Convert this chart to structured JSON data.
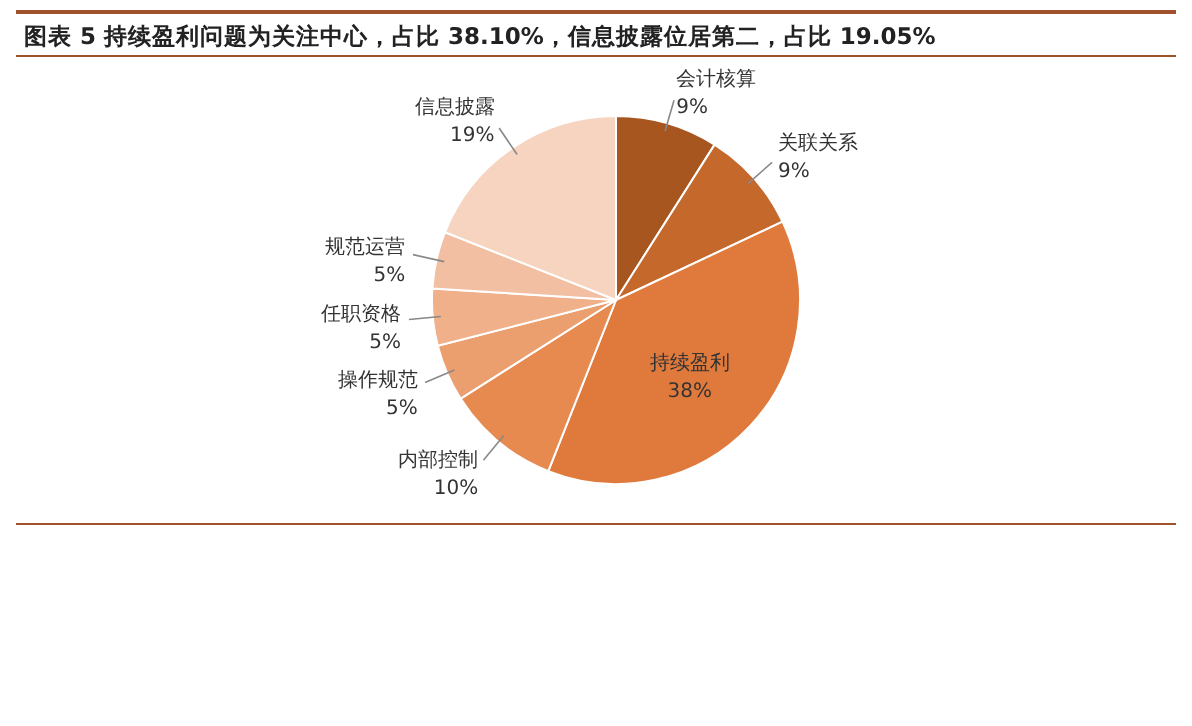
{
  "chart_data": {
    "type": "pie",
    "title": "图表 5  持续盈利问题为关注中心，占比 38.10%，信息披露位居第二，占比 19.05%",
    "categories": [
      "会计核算",
      "关联关系",
      "持续盈利",
      "内部控制",
      "操作规范",
      "任职资格",
      "规范运营",
      "信息披露"
    ],
    "values": [
      9,
      9,
      38,
      10,
      5,
      5,
      5,
      19
    ],
    "colors": [
      "#a8561f",
      "#c4682c",
      "#e07a3c",
      "#e68a50",
      "#eb9e6e",
      "#efb08a",
      "#f2bfa2",
      "#f7d4bf"
    ],
    "value_labels": [
      "9%",
      "9%",
      "38%",
      "10%",
      "5%",
      "5%",
      "5%",
      "19%"
    ]
  }
}
